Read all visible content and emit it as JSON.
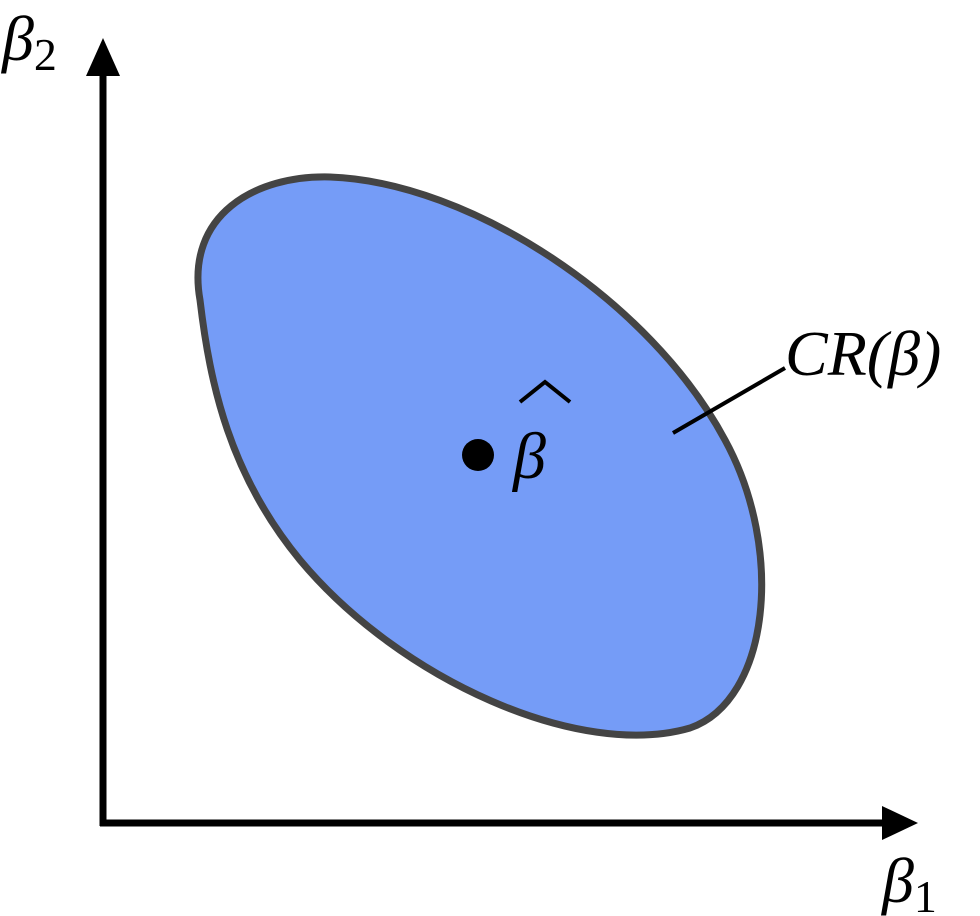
{
  "axes": {
    "x_label": {
      "symbol": "β",
      "subscript": "1"
    },
    "y_label": {
      "symbol": "β",
      "subscript": "2"
    }
  },
  "region": {
    "label": "CR(β)",
    "fill_color": "#759cf7",
    "stroke_color": "#444444"
  },
  "estimate": {
    "symbol": "β",
    "accent": "^"
  }
}
